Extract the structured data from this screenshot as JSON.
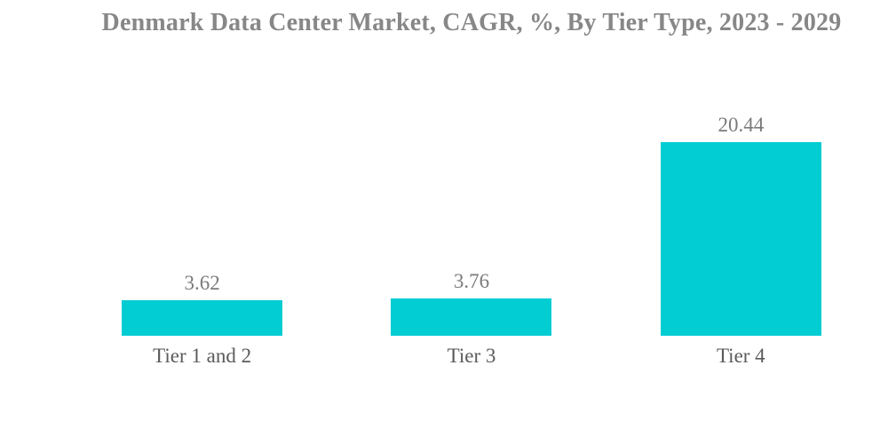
{
  "chart_data": {
    "type": "bar",
    "title": "Denmark Data Center Market, CAGR, %, By Tier Type, 2023 - 2029",
    "categories": [
      "Tier 1 and 2",
      "Tier 3",
      "Tier 4"
    ],
    "values": [
      3.62,
      3.76,
      20.44
    ],
    "value_labels": [
      "3.62",
      "3.76",
      "20.44"
    ],
    "xlabel": "",
    "ylabel": "",
    "ylim": [
      0,
      22.4
    ],
    "grid": false,
    "legend": false,
    "axis_lines": false,
    "background": "#FFFFFF",
    "colors": {
      "bar": "#02CDD3",
      "title": "#878787",
      "value_label": "#7B7B7B",
      "tick_label": "#5A5A5A"
    }
  }
}
